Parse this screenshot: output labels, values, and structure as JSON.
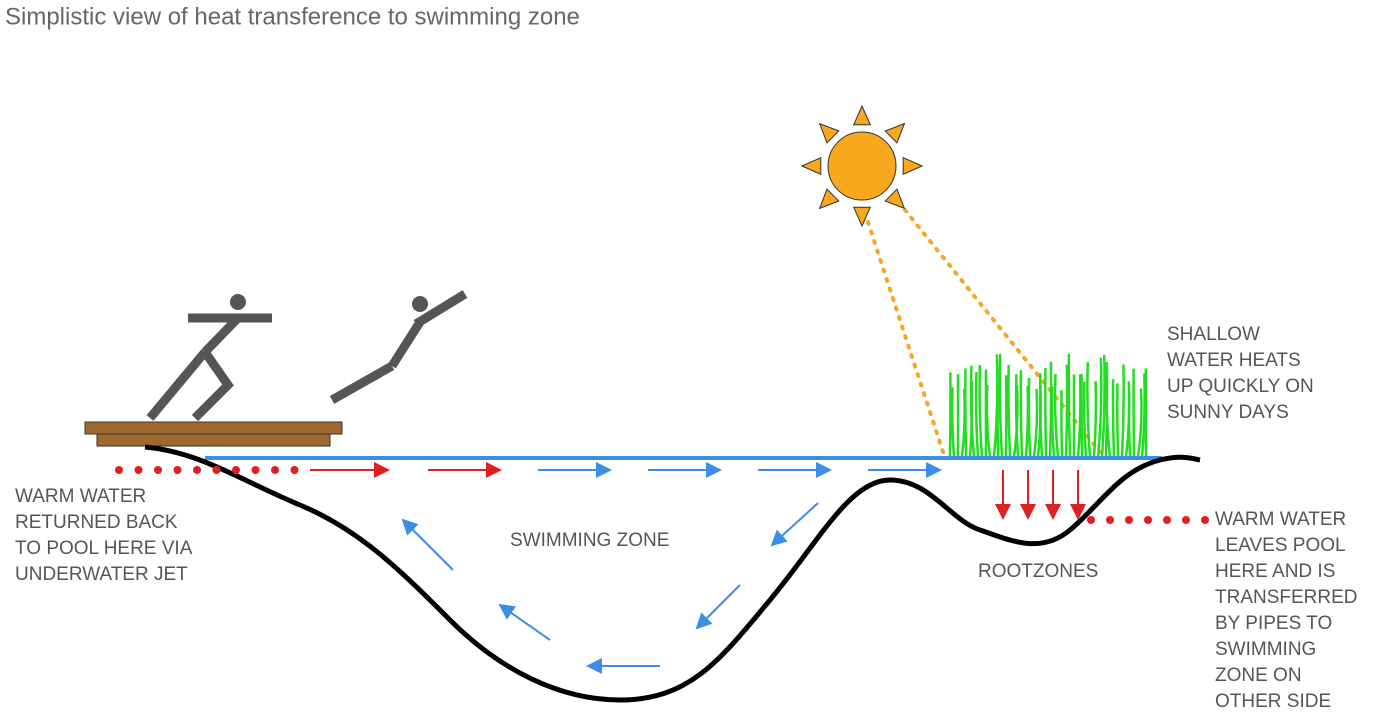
{
  "title": "Simplistic view of heat transference to swimming zone",
  "labels": {
    "swimming_zone": "SWIMMING ZONE",
    "rootzones": "ROOTZONES",
    "shallow": [
      "SHALLOW",
      "WATER HEATS",
      "UP QUICKLY ON",
      "SUNNY DAYS"
    ],
    "warm_return": [
      "WARM WATER",
      "RETURNED BACK",
      "TO POOL HERE VIA",
      "UNDERWATER JET"
    ],
    "warm_leaves": [
      "WARM WATER",
      "LEAVES POOL",
      "HERE AND IS",
      "TRANSFERRED",
      "BY PIPES TO",
      "SWIMMING",
      "ZONE ON",
      "OTHER SIDE"
    ]
  }
}
